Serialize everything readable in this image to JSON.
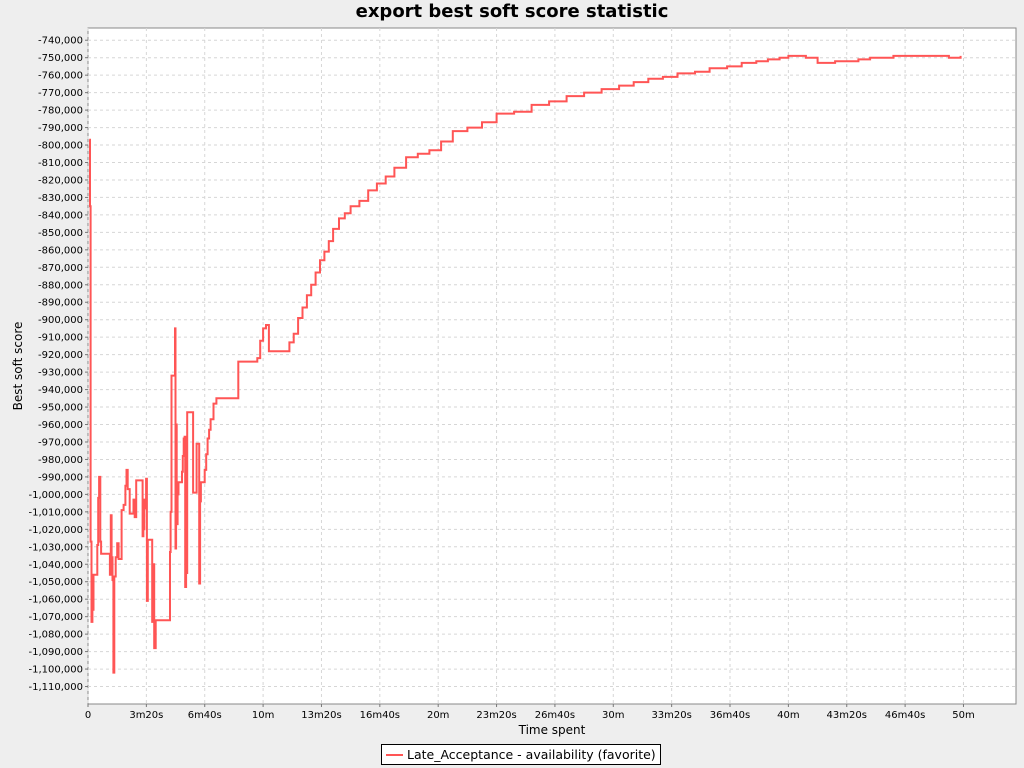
{
  "chart_data": {
    "type": "line",
    "title": "export best soft score statistic",
    "xlabel": "Time spent",
    "ylabel": "Best soft score",
    "xlim_seconds": [
      0,
      3180
    ],
    "ylim": [
      -1120000,
      -733000
    ],
    "grid": true,
    "legend_position": "bottom-center",
    "x_ticks": [
      {
        "value": 0,
        "label": "0"
      },
      {
        "value": 200,
        "label": "3m20s"
      },
      {
        "value": 400,
        "label": "6m40s"
      },
      {
        "value": 600,
        "label": "10m"
      },
      {
        "value": 800,
        "label": "13m20s"
      },
      {
        "value": 1000,
        "label": "16m40s"
      },
      {
        "value": 1200,
        "label": "20m"
      },
      {
        "value": 1400,
        "label": "23m20s"
      },
      {
        "value": 1600,
        "label": "26m40s"
      },
      {
        "value": 1800,
        "label": "30m"
      },
      {
        "value": 2000,
        "label": "33m20s"
      },
      {
        "value": 2200,
        "label": "36m40s"
      },
      {
        "value": 2400,
        "label": "40m"
      },
      {
        "value": 2600,
        "label": "43m20s"
      },
      {
        "value": 2800,
        "label": "46m40s"
      },
      {
        "value": 3000,
        "label": "50m"
      }
    ],
    "y_ticks": [
      {
        "value": -740000,
        "label": "-740,000"
      },
      {
        "value": -750000,
        "label": "-750,000"
      },
      {
        "value": -760000,
        "label": "-760,000"
      },
      {
        "value": -770000,
        "label": "-770,000"
      },
      {
        "value": -780000,
        "label": "-780,000"
      },
      {
        "value": -790000,
        "label": "-790,000"
      },
      {
        "value": -800000,
        "label": "-800,000"
      },
      {
        "value": -810000,
        "label": "-810,000"
      },
      {
        "value": -820000,
        "label": "-820,000"
      },
      {
        "value": -830000,
        "label": "-830,000"
      },
      {
        "value": -840000,
        "label": "-840,000"
      },
      {
        "value": -850000,
        "label": "-850,000"
      },
      {
        "value": -860000,
        "label": "-860,000"
      },
      {
        "value": -870000,
        "label": "-870,000"
      },
      {
        "value": -880000,
        "label": "-880,000"
      },
      {
        "value": -890000,
        "label": "-890,000"
      },
      {
        "value": -900000,
        "label": "-900,000"
      },
      {
        "value": -910000,
        "label": "-910,000"
      },
      {
        "value": -920000,
        "label": "-920,000"
      },
      {
        "value": -930000,
        "label": "-930,000"
      },
      {
        "value": -940000,
        "label": "-940,000"
      },
      {
        "value": -950000,
        "label": "-950,000"
      },
      {
        "value": -960000,
        "label": "-960,000"
      },
      {
        "value": -970000,
        "label": "-970,000"
      },
      {
        "value": -980000,
        "label": "-980,000"
      },
      {
        "value": -990000,
        "label": "-990,000"
      },
      {
        "value": -1000000,
        "label": "-1,000,000"
      },
      {
        "value": -1010000,
        "label": "-1,010,000"
      },
      {
        "value": -1020000,
        "label": "-1,020,000"
      },
      {
        "value": -1030000,
        "label": "-1,030,000"
      },
      {
        "value": -1040000,
        "label": "-1,040,000"
      },
      {
        "value": -1050000,
        "label": "-1,050,000"
      },
      {
        "value": -1060000,
        "label": "-1,060,000"
      },
      {
        "value": -1070000,
        "label": "-1,070,000"
      },
      {
        "value": -1080000,
        "label": "-1,080,000"
      },
      {
        "value": -1090000,
        "label": "-1,090,000"
      },
      {
        "value": -1100000,
        "label": "-1,100,000"
      },
      {
        "value": -1110000,
        "label": "-1,110,000"
      }
    ],
    "series": [
      {
        "name": "Late_Acceptance - availability (favorite)",
        "color": "#ff5555",
        "step": true,
        "points": [
          [
            4,
            -797000
          ],
          [
            7,
            -835000
          ],
          [
            9,
            -1027000
          ],
          [
            12,
            -1073000
          ],
          [
            15,
            -1066000
          ],
          [
            19,
            -1046000
          ],
          [
            28,
            -1046000
          ],
          [
            32,
            -1029000
          ],
          [
            35,
            -1002000
          ],
          [
            38,
            -990000
          ],
          [
            42,
            -1027000
          ],
          [
            45,
            -1034000
          ],
          [
            60,
            -1034000
          ],
          [
            75,
            -1046000
          ],
          [
            78,
            -1012000
          ],
          [
            81,
            -1036000
          ],
          [
            84,
            -1049000
          ],
          [
            87,
            -1102000
          ],
          [
            90,
            -1047000
          ],
          [
            95,
            -1036000
          ],
          [
            100,
            -1028000
          ],
          [
            105,
            -1037000
          ],
          [
            112,
            -1037000
          ],
          [
            115,
            -1009000
          ],
          [
            122,
            -1006000
          ],
          [
            128,
            -995000
          ],
          [
            132,
            -986000
          ],
          [
            136,
            -997000
          ],
          [
            140,
            -997000
          ],
          [
            143,
            -1011000
          ],
          [
            148,
            -1011000
          ],
          [
            153,
            -1011000
          ],
          [
            156,
            -1003000
          ],
          [
            160,
            -1013000
          ],
          [
            165,
            -992000
          ],
          [
            175,
            -992000
          ],
          [
            183,
            -992000
          ],
          [
            187,
            -1024000
          ],
          [
            190,
            -1020000
          ],
          [
            193,
            -1003000
          ],
          [
            196,
            -1008000
          ],
          [
            199,
            -991000
          ],
          [
            202,
            -1061000
          ],
          [
            205,
            -1026000
          ],
          [
            215,
            -1026000
          ],
          [
            220,
            -1073000
          ],
          [
            223,
            -1040000
          ],
          [
            227,
            -1088000
          ],
          [
            232,
            -1072000
          ],
          [
            250,
            -1072000
          ],
          [
            270,
            -1072000
          ],
          [
            278,
            -1072000
          ],
          [
            281,
            -1033000
          ],
          [
            283,
            -1010000
          ],
          [
            286,
            -932000
          ],
          [
            290,
            -932000
          ],
          [
            296,
            -932000
          ],
          [
            298,
            -905000
          ],
          [
            300,
            -1031000
          ],
          [
            302,
            -960000
          ],
          [
            304,
            -1017000
          ],
          [
            307,
            -1000000
          ],
          [
            310,
            -993000
          ],
          [
            318,
            -993000
          ],
          [
            322,
            -987000
          ],
          [
            325,
            -978000
          ],
          [
            328,
            -968000
          ],
          [
            331,
            -967000
          ],
          [
            333,
            -1053000
          ],
          [
            336,
            -1045000
          ],
          [
            340,
            -953000
          ],
          [
            348,
            -953000
          ],
          [
            356,
            -953000
          ],
          [
            360,
            -999000
          ],
          [
            368,
            -999000
          ],
          [
            372,
            -971000
          ],
          [
            378,
            -971000
          ],
          [
            381,
            -1051000
          ],
          [
            384,
            -1004000
          ],
          [
            387,
            -993000
          ],
          [
            395,
            -993000
          ],
          [
            400,
            -986000
          ],
          [
            405,
            -977000
          ],
          [
            410,
            -968000
          ],
          [
            415,
            -963000
          ],
          [
            420,
            -957000
          ],
          [
            430,
            -948000
          ],
          [
            440,
            -945000
          ],
          [
            470,
            -945000
          ],
          [
            510,
            -945000
          ],
          [
            515,
            -924000
          ],
          [
            540,
            -924000
          ],
          [
            570,
            -924000
          ],
          [
            580,
            -922000
          ],
          [
            590,
            -912000
          ],
          [
            600,
            -905000
          ],
          [
            610,
            -903000
          ],
          [
            620,
            -918000
          ],
          [
            660,
            -918000
          ],
          [
            680,
            -918000
          ],
          [
            690,
            -913000
          ],
          [
            705,
            -908000
          ],
          [
            720,
            -899000
          ],
          [
            735,
            -893000
          ],
          [
            750,
            -886000
          ],
          [
            765,
            -880000
          ],
          [
            780,
            -873000
          ],
          [
            795,
            -866000
          ],
          [
            810,
            -861000
          ],
          [
            825,
            -855000
          ],
          [
            840,
            -848000
          ],
          [
            860,
            -842000
          ],
          [
            880,
            -839000
          ],
          [
            900,
            -835000
          ],
          [
            930,
            -832000
          ],
          [
            960,
            -826000
          ],
          [
            990,
            -822000
          ],
          [
            1020,
            -818000
          ],
          [
            1050,
            -813000
          ],
          [
            1090,
            -807000
          ],
          [
            1130,
            -805000
          ],
          [
            1170,
            -803000
          ],
          [
            1210,
            -798000
          ],
          [
            1250,
            -792000
          ],
          [
            1300,
            -790000
          ],
          [
            1350,
            -787000
          ],
          [
            1400,
            -782000
          ],
          [
            1460,
            -781000
          ],
          [
            1520,
            -777000
          ],
          [
            1580,
            -775000
          ],
          [
            1640,
            -772000
          ],
          [
            1700,
            -770000
          ],
          [
            1760,
            -768000
          ],
          [
            1820,
            -766000
          ],
          [
            1870,
            -764000
          ],
          [
            1920,
            -762000
          ],
          [
            1970,
            -761000
          ],
          [
            2020,
            -759000
          ],
          [
            2080,
            -758000
          ],
          [
            2130,
            -756000
          ],
          [
            2190,
            -755000
          ],
          [
            2240,
            -753000
          ],
          [
            2290,
            -752000
          ],
          [
            2330,
            -751000
          ],
          [
            2370,
            -750000
          ],
          [
            2400,
            -749000
          ],
          [
            2430,
            -749000
          ],
          [
            2460,
            -750000
          ],
          [
            2500,
            -753000
          ],
          [
            2520,
            -753000
          ],
          [
            2560,
            -752000
          ],
          [
            2600,
            -752000
          ],
          [
            2640,
            -751000
          ],
          [
            2680,
            -750000
          ],
          [
            2720,
            -750000
          ],
          [
            2760,
            -749000
          ],
          [
            2800,
            -749000
          ],
          [
            2840,
            -749000
          ],
          [
            2880,
            -749000
          ],
          [
            2920,
            -749000
          ],
          [
            2950,
            -750000
          ],
          [
            2990,
            -749000
          ]
        ]
      }
    ]
  }
}
